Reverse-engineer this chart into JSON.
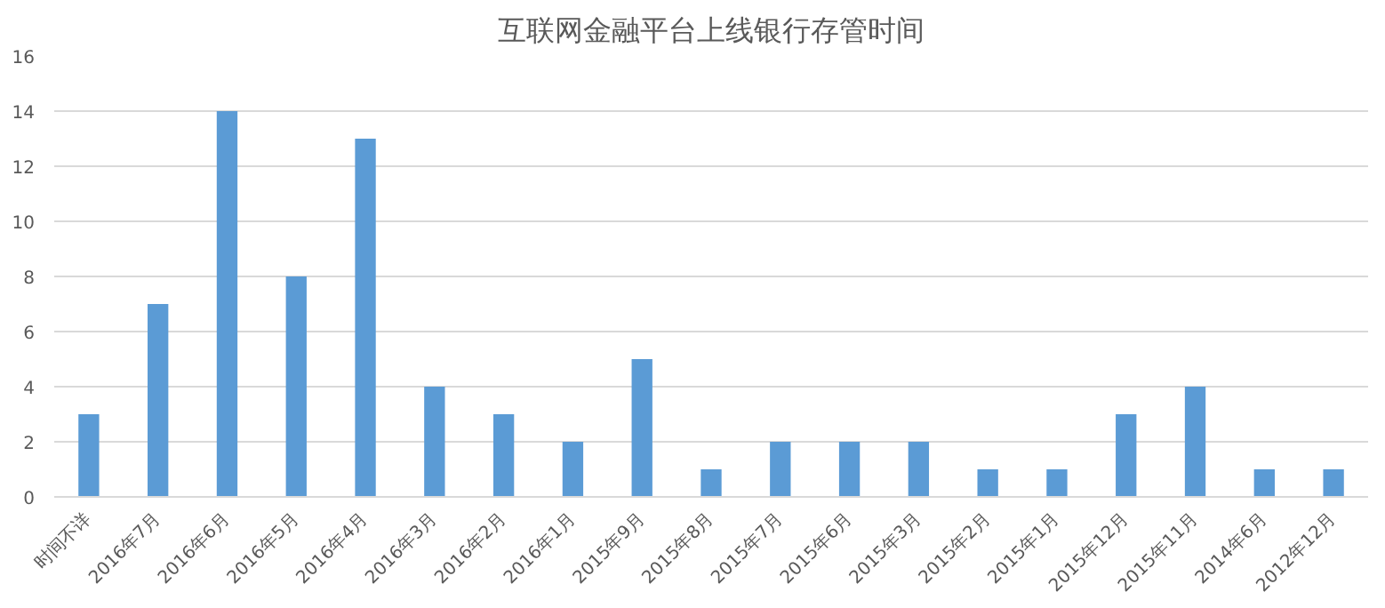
{
  "chart_data": {
    "type": "bar",
    "title": "互联网金融平台上线银行存管时间",
    "categories": [
      "时间不详",
      "2016年7月",
      "2016年6月",
      "2016年5月",
      "2016年4月",
      "2016年3月",
      "2016年2月",
      "2016年1月",
      "2015年9月",
      "2015年8月",
      "2015年7月",
      "2015年6月",
      "2015年3月",
      "2015年2月",
      "2015年1月",
      "2015年12月",
      "2015年11月",
      "2014年6月",
      "2012年12月"
    ],
    "values": [
      3,
      7,
      14,
      8,
      13,
      4,
      3,
      2,
      5,
      1,
      2,
      2,
      2,
      1,
      1,
      3,
      4,
      1,
      1
    ],
    "color": "#5b9bd5",
    "ylim": [
      0,
      16
    ],
    "yticks": [
      0,
      2,
      4,
      6,
      8,
      10,
      12,
      14,
      16
    ],
    "grid": "y"
  }
}
